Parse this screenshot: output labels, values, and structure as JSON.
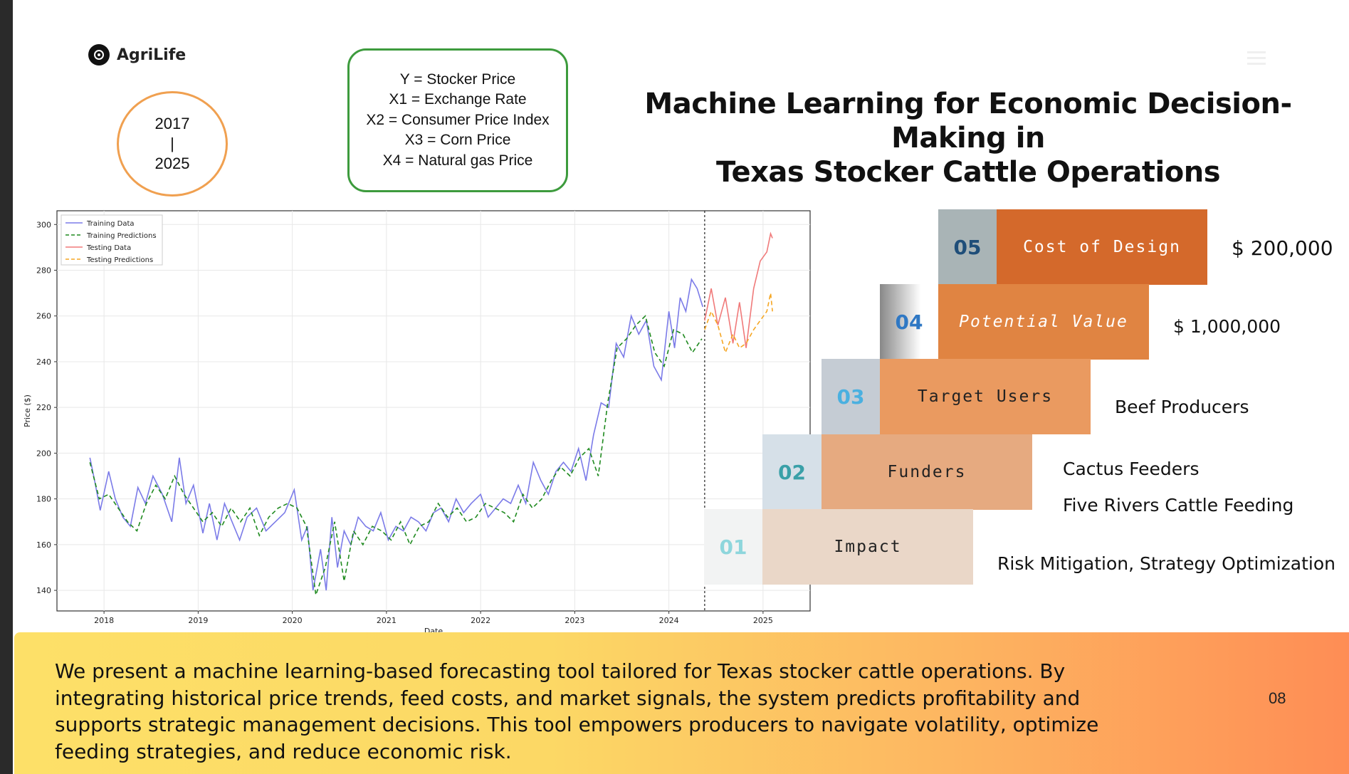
{
  "brand": {
    "name": "AgriLife",
    "icon": "target-icon"
  },
  "years": {
    "start": "2017",
    "sep": "|",
    "end": "2025"
  },
  "variables": [
    "Y = Stocker Price",
    "X1 = Exchange Rate",
    "X2 = Consumer Price Index",
    "X3 = Corn Price",
    "X4 = Natural gas Price"
  ],
  "title": {
    "line1": "Machine Learning for Economic Decision-Making in",
    "line2": "Texas Stocker Cattle Operations"
  },
  "stairs": [
    {
      "num": "05",
      "label": "Cost of Design",
      "value": "$ 200,000"
    },
    {
      "num": "04",
      "label": "Potential Value",
      "value": "$ 1,000,000"
    },
    {
      "num": "03",
      "label": "Target Users",
      "value": "Beef Producers"
    },
    {
      "num": "02",
      "label": "Funders",
      "value": "Cactus Feeders",
      "value2": "Five Rivers Cattle Feeding"
    },
    {
      "num": "01",
      "label": "Impact",
      "value": "Risk Mitigation, Strategy Optimization"
    }
  ],
  "colors": {
    "training_data": "#7b7be8",
    "training_pred": "#1f8a1f",
    "testing_data": "#f07a7a",
    "testing_pred": "#f5a623",
    "circle_border": "#f0a050",
    "box_border": "#3d9b3d"
  },
  "footer": {
    "text": "We present a machine learning-based forecasting tool tailored for Texas stocker cattle operations. By integrating historical price trends, feed costs, and market signals, the system predicts profitability and supports strategic management decisions. This tool empowers producers to navigate volatility, optimize feeding strategies, and reduce economic risk.",
    "page": "08"
  },
  "chart_data": {
    "type": "line",
    "xlabel": "Date",
    "ylabel": "Price ($)",
    "ylim": [
      131,
      306
    ],
    "xlim": [
      2017.5,
      2025.5
    ],
    "x_ticks": [
      "2018",
      "2019",
      "2020",
      "2021",
      "2022",
      "2023",
      "2024",
      "2025"
    ],
    "y_ticks": [
      140,
      160,
      180,
      200,
      220,
      240,
      260,
      280,
      300
    ],
    "split_date": 2024.38,
    "legend_position": "top-left",
    "grid": true,
    "series": [
      {
        "name": "Training Data",
        "x": [
          2017.85,
          2017.9,
          2017.96,
          2018.05,
          2018.12,
          2018.2,
          2018.28,
          2018.36,
          2018.44,
          2018.52,
          2018.62,
          2018.72,
          2018.8,
          2018.87,
          2018.95,
          2019.05,
          2019.12,
          2019.2,
          2019.28,
          2019.36,
          2019.44,
          2019.52,
          2019.62,
          2019.72,
          2019.82,
          2019.92,
          2020.02,
          2020.1,
          2020.16,
          2020.22,
          2020.3,
          2020.36,
          2020.42,
          2020.48,
          2020.55,
          2020.62,
          2020.7,
          2020.78,
          2020.86,
          2020.94,
          2021.02,
          2021.1,
          2021.18,
          2021.26,
          2021.34,
          2021.42,
          2021.5,
          2021.58,
          2021.66,
          2021.74,
          2021.82,
          2021.9,
          2022.0,
          2022.08,
          2022.16,
          2022.24,
          2022.32,
          2022.4,
          2022.48,
          2022.56,
          2022.64,
          2022.72,
          2022.8,
          2022.88,
          2022.96,
          2023.04,
          2023.12,
          2023.2,
          2023.28,
          2023.36,
          2023.44,
          2023.52,
          2023.6,
          2023.68,
          2023.76,
          2023.84,
          2023.92,
          2024.0,
          2024.06,
          2024.12,
          2024.18,
          2024.24,
          2024.3,
          2024.36
        ],
        "values": [
          198,
          188,
          175,
          192,
          180,
          172,
          168,
          185,
          178,
          190,
          182,
          170,
          198,
          178,
          186,
          165,
          178,
          162,
          178,
          170,
          162,
          172,
          176,
          166,
          170,
          174,
          184,
          162,
          168,
          140,
          158,
          140,
          172,
          150,
          166,
          160,
          172,
          168,
          166,
          174,
          162,
          168,
          166,
          172,
          170,
          166,
          174,
          176,
          170,
          180,
          174,
          178,
          182,
          172,
          176,
          180,
          178,
          186,
          178,
          196,
          188,
          182,
          192,
          196,
          192,
          202,
          188,
          208,
          222,
          220,
          248,
          242,
          260,
          252,
          258,
          238,
          232,
          262,
          246,
          268,
          262,
          276,
          272,
          264
        ]
      },
      {
        "name": "Training Predictions",
        "x": [
          2017.85,
          2017.95,
          2018.05,
          2018.15,
          2018.25,
          2018.35,
          2018.45,
          2018.55,
          2018.65,
          2018.75,
          2018.85,
          2018.95,
          2019.05,
          2019.15,
          2019.25,
          2019.35,
          2019.45,
          2019.55,
          2019.65,
          2019.75,
          2019.85,
          2019.95,
          2020.05,
          2020.15,
          2020.25,
          2020.35,
          2020.45,
          2020.55,
          2020.65,
          2020.75,
          2020.85,
          2020.95,
          2021.05,
          2021.15,
          2021.25,
          2021.35,
          2021.45,
          2021.55,
          2021.65,
          2021.75,
          2021.85,
          2021.95,
          2022.05,
          2022.15,
          2022.25,
          2022.35,
          2022.45,
          2022.55,
          2022.65,
          2022.75,
          2022.85,
          2022.95,
          2023.05,
          2023.15,
          2023.25,
          2023.35,
          2023.45,
          2023.55,
          2023.65,
          2023.75,
          2023.85,
          2023.95,
          2024.05,
          2024.15,
          2024.25,
          2024.35
        ],
        "values": [
          196,
          180,
          182,
          176,
          170,
          166,
          178,
          186,
          180,
          190,
          182,
          176,
          170,
          174,
          168,
          176,
          170,
          176,
          164,
          172,
          176,
          178,
          176,
          168,
          138,
          150,
          170,
          144,
          166,
          160,
          168,
          166,
          162,
          170,
          160,
          168,
          170,
          178,
          172,
          176,
          170,
          172,
          178,
          176,
          174,
          170,
          182,
          176,
          180,
          188,
          194,
          190,
          198,
          202,
          190,
          222,
          246,
          250,
          256,
          260,
          244,
          238,
          254,
          252,
          244,
          250
        ]
      },
      {
        "name": "Testing Data",
        "x": [
          2024.38,
          2024.45,
          2024.52,
          2024.6,
          2024.68,
          2024.75,
          2024.82,
          2024.9,
          2024.97,
          2025.04,
          2025.08,
          2025.1
        ],
        "values": [
          258,
          272,
          256,
          268,
          248,
          266,
          246,
          272,
          284,
          288,
          296,
          294
        ]
      },
      {
        "name": "Testing Predictions",
        "x": [
          2024.38,
          2024.45,
          2024.52,
          2024.6,
          2024.68,
          2024.75,
          2024.82,
          2024.9,
          2024.97,
          2025.04,
          2025.08,
          2025.1
        ],
        "values": [
          254,
          262,
          256,
          244,
          252,
          246,
          248,
          254,
          258,
          262,
          270,
          262
        ]
      }
    ]
  }
}
